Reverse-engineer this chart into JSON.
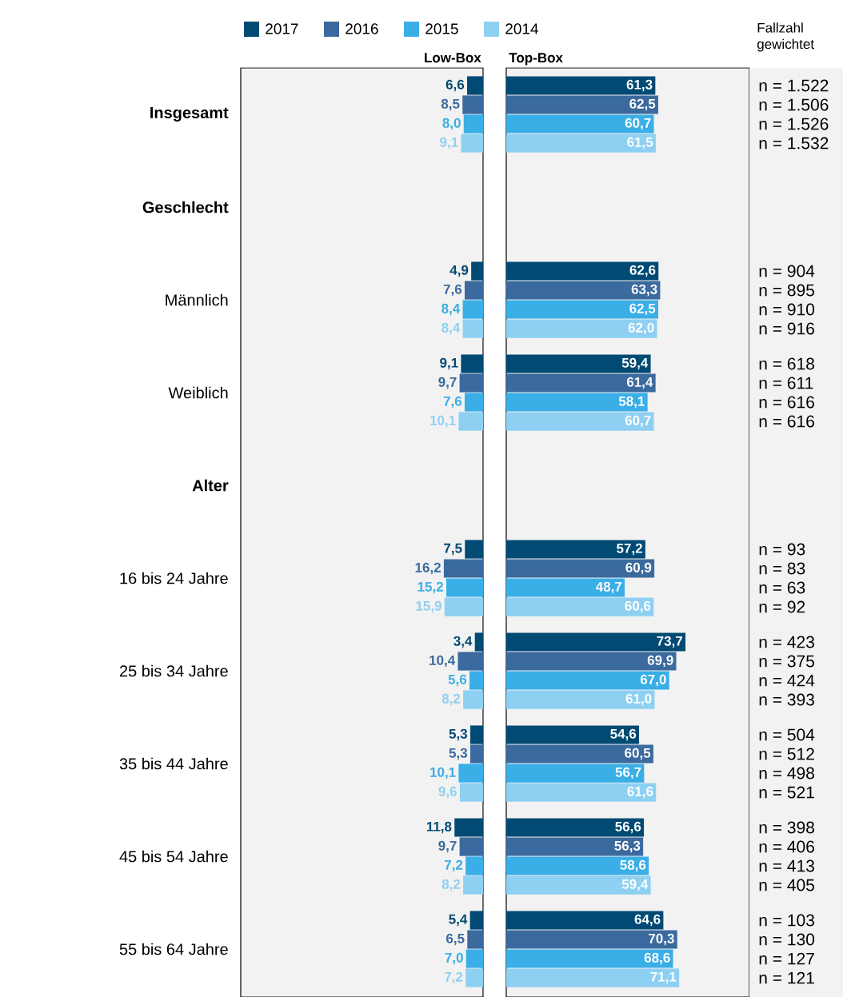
{
  "chart_data": [
    {
      "type": "bar",
      "orientation": "horizontal",
      "title": "Low-Box",
      "legend": "top",
      "tick_labels": "y",
      "xlim": [
        100,
        0
      ],
      "categories": [
        "Insgesamt",
        "Geschlecht",
        "Männlich",
        "Weiblich",
        "Alter",
        "16 bis 24 Jahre",
        "25 bis 34 Jahre",
        "35 bis 44 Jahre",
        "45 bis 54 Jahre",
        "55 bis 64 Jahre"
      ],
      "series": [
        {
          "name": "2017",
          "color": "#004a73",
          "values": [
            6.6,
            null,
            4.9,
            9.1,
            null,
            7.5,
            3.4,
            5.3,
            11.8,
            5.4
          ],
          "value_labels": [
            "6,6",
            null,
            "4,9",
            "9,1",
            null,
            "7,5",
            "3,4",
            "5,3",
            "11,8",
            "5,4"
          ]
        },
        {
          "name": "2016",
          "color": "#3a6a9e",
          "values": [
            8.5,
            null,
            7.6,
            9.7,
            null,
            16.2,
            10.4,
            5.3,
            9.7,
            6.5
          ],
          "value_labels": [
            "8,5",
            null,
            "7,6",
            "9,7",
            null,
            "16,2",
            "10,4",
            "5,3",
            "9,7",
            "6,5"
          ]
        },
        {
          "name": "2015",
          "color": "#3aaee6",
          "values": [
            8.0,
            null,
            8.4,
            7.6,
            null,
            15.2,
            5.6,
            10.1,
            7.2,
            7.0
          ],
          "value_labels": [
            "8,0",
            null,
            "8,4",
            "7,6",
            null,
            "15,2",
            "5,6",
            "10,1",
            "7,2",
            "7,0"
          ]
        },
        {
          "name": "2014",
          "color": "#8ed0f2",
          "values": [
            9.1,
            null,
            8.4,
            10.1,
            null,
            15.9,
            8.2,
            9.6,
            8.2,
            7.2
          ],
          "value_labels": [
            "9,1",
            null,
            "8,4",
            "10,1",
            null,
            "15,9",
            "8,2",
            "9,6",
            "8,2",
            "7,2"
          ]
        }
      ]
    },
    {
      "type": "bar",
      "orientation": "horizontal",
      "title": "Top-Box",
      "tick_labels": false,
      "xlim": [
        0,
        100
      ],
      "series": [
        {
          "color": "#004a73",
          "values": [
            61.3,
            null,
            62.6,
            59.4,
            null,
            57.2,
            73.7,
            54.6,
            56.6,
            64.6
          ],
          "value_labels": [
            "61,3",
            null,
            "62,6",
            "59,4",
            null,
            "57,2",
            "73,7",
            "54,6",
            "56,6",
            "64,6"
          ]
        },
        {
          "color": "#3a6a9e",
          "values": [
            62.5,
            null,
            63.3,
            61.4,
            null,
            60.9,
            69.9,
            60.5,
            56.3,
            70.3
          ],
          "value_labels": [
            "62,5",
            null,
            "63,3",
            "61,4",
            null,
            "60,9",
            "69,9",
            "60,5",
            "56,3",
            "70,3"
          ]
        },
        {
          "color": "#3aaee6",
          "values": [
            60.7,
            null,
            62.5,
            58.1,
            null,
            48.7,
            67.0,
            56.7,
            58.6,
            68.6
          ],
          "value_labels": [
            "60,7",
            null,
            "62,5",
            "58,1",
            null,
            "48,7",
            "67,0",
            "56,7",
            "58,6",
            "68,6"
          ]
        },
        {
          "color": "#8ed0f2",
          "values": [
            61.5,
            null,
            62.0,
            60.7,
            null,
            60.6,
            61.0,
            61.6,
            59.4,
            71.1
          ],
          "value_labels": [
            "61,5",
            null,
            "62,0",
            "60,7",
            null,
            "60,6",
            "61,0",
            "61,6",
            "59,4",
            "71,1"
          ]
        }
      ]
    },
    {
      "type": "other",
      "title": "Fallzahl gewichtet",
      "annotations": [
        "n = 1.522",
        "n = 1.506",
        "n = 1.526",
        "n = 1.532",
        "n = 904",
        "n = 895",
        "n = 910",
        "n = 916",
        "n = 618",
        "n = 611",
        "n = 616",
        "n = 616",
        "n = 93",
        "n = 83",
        "n = 63",
        "n = 92",
        "n = 423",
        "n = 375",
        "n = 424",
        "n = 393",
        "n = 504",
        "n = 512",
        "n = 498",
        "n = 521",
        "n = 398",
        "n = 406",
        "n = 413",
        "n = 405",
        "n = 103",
        "n = 130",
        "n = 127",
        "n = 121"
      ]
    }
  ]
}
